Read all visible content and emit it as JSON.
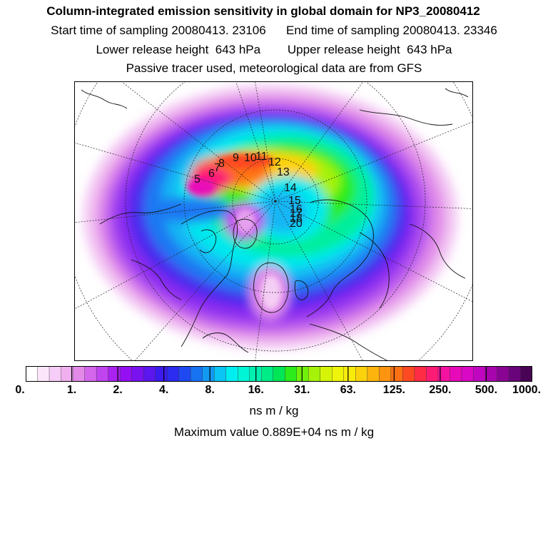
{
  "title": {
    "main": "Column-integrated emission sensitivity in global domain for NP3_20080412",
    "start_label": "Start time of sampling",
    "start_value": "20080413. 23106",
    "end_label": "End time of sampling",
    "end_value": "20080413. 23346",
    "lower_label": "Lower release height",
    "lower_value": "643 hPa",
    "upper_label": "Upper release height",
    "upper_value": "643 hPa",
    "line3": "Passive tracer used, meteorological data are from GFS"
  },
  "colorbar": {
    "ticks": [
      "0.",
      "1.",
      "2.",
      "4.",
      "8.",
      "16.",
      "31.",
      "63.",
      "125.",
      "250.",
      "500.",
      "1000."
    ],
    "colors": [
      "#ffffff",
      "#fbe6fb",
      "#f6cdf6",
      "#f0b0f0",
      "#e38ae8",
      "#d466ec",
      "#c044ef",
      "#aa22f0",
      "#9410f2",
      "#7a12f0",
      "#5c16ee",
      "#3c1bee",
      "#2c2cf0",
      "#1f4af2",
      "#1873f3",
      "#129af3",
      "#0bc6f4",
      "#00eef0",
      "#00f4d6",
      "#00f0b0",
      "#00ec86",
      "#00e656",
      "#2cec1c",
      "#70f00a",
      "#a6f208",
      "#d6f408",
      "#eef40a",
      "#f8ec0c",
      "#fcd20c",
      "#fdb40c",
      "#fe9410",
      "#fe7014",
      "#fe4a22",
      "#fe2c44",
      "#fd1c74",
      "#f412a0",
      "#e80ab8",
      "#d808c4",
      "#c006c0",
      "#a804ae",
      "#8a0494",
      "#6a047a",
      "#4a0456"
    ],
    "units": "ns m / kg"
  },
  "max_value_text": "Maximum value  0.889E+04 ns m / kg",
  "map": {
    "track_labels": [
      "5",
      "6",
      "7",
      "8",
      "9",
      "10",
      "11",
      "12",
      "13",
      "14",
      "15",
      "16",
      "17",
      "18",
      "20"
    ]
  }
}
